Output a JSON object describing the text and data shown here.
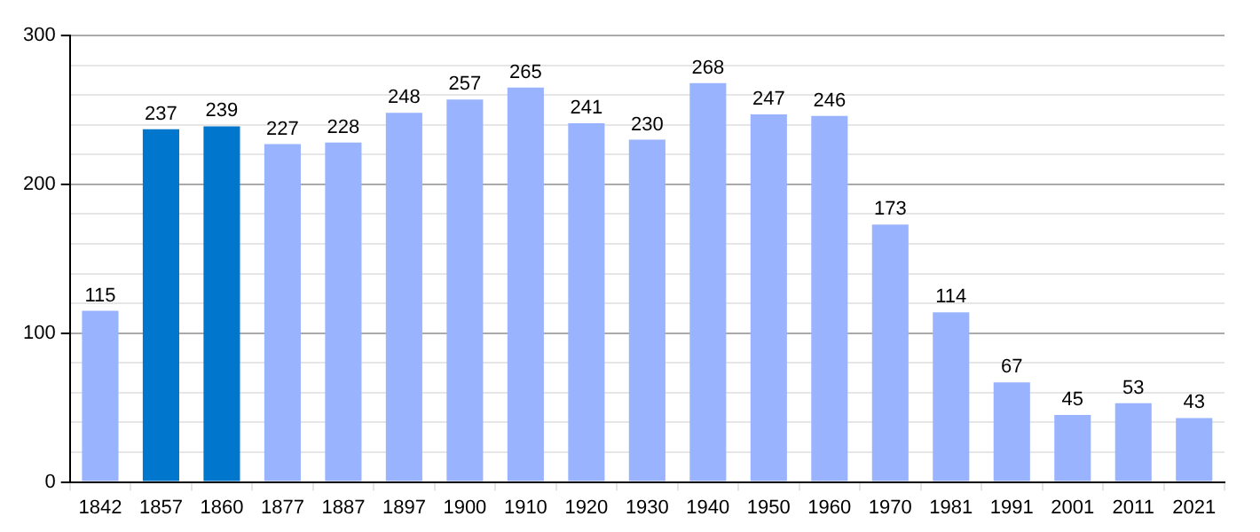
{
  "chart_data": {
    "type": "bar",
    "categories": [
      "1842",
      "1857",
      "1860",
      "1877",
      "1887",
      "1897",
      "1900",
      "1910",
      "1920",
      "1930",
      "1940",
      "1950",
      "1960",
      "1970",
      "1981",
      "1991",
      "2001",
      "2011",
      "2021"
    ],
    "values": [
      115,
      237,
      239,
      227,
      228,
      248,
      257,
      265,
      241,
      230,
      268,
      247,
      246,
      173,
      114,
      67,
      45,
      53,
      43
    ],
    "colors": [
      "#99b3ff",
      "#0077cc",
      "#0077cc",
      "#99b3ff",
      "#99b3ff",
      "#99b3ff",
      "#99b3ff",
      "#99b3ff",
      "#99b3ff",
      "#99b3ff",
      "#99b3ff",
      "#99b3ff",
      "#99b3ff",
      "#99b3ff",
      "#99b3ff",
      "#99b3ff",
      "#99b3ff",
      "#99b3ff",
      "#99b3ff"
    ],
    "ylim": [
      0,
      300
    ],
    "yticks": [
      0,
      {
        "value": 20,
        "label": null
      },
      {
        "value": 40,
        "label": null
      },
      {
        "value": 60,
        "label": null
      },
      {
        "value": 80,
        "label": null
      },
      100,
      {
        "value": 120,
        "label": null
      },
      {
        "value": 140,
        "label": null
      },
      {
        "value": 160,
        "label": null
      },
      {
        "value": 180,
        "label": null
      },
      200,
      {
        "value": 220,
        "label": null
      },
      {
        "value": 240,
        "label": null
      },
      {
        "value": 260,
        "label": null
      },
      {
        "value": 280,
        "label": null
      },
      300
    ],
    "grid": true,
    "legend": false,
    "data_labels": true
  }
}
